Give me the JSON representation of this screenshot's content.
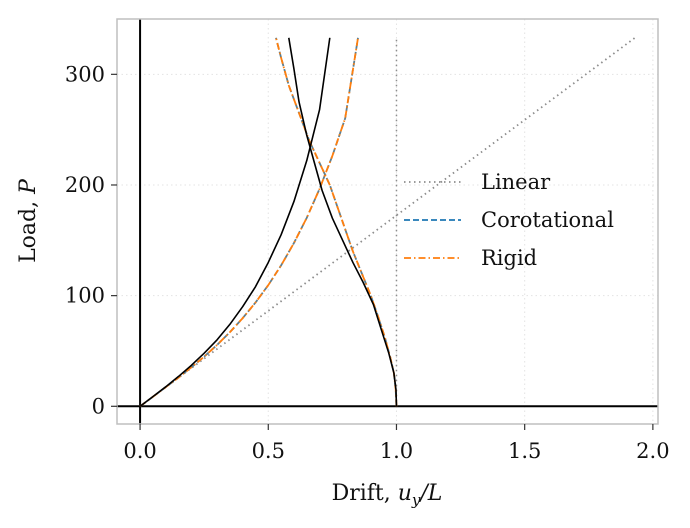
{
  "chart_data": {
    "type": "line",
    "xlabel": "Drift, ",
    "xlabel_math": "u",
    "xlabel_sub": "y",
    "xlabel_tail": "/L",
    "ylabel": "Load, ",
    "ylabel_math": "P",
    "xlim": [
      -0.09,
      2.02
    ],
    "ylim": [
      -16,
      350
    ],
    "xticks": [
      0.0,
      0.5,
      1.0,
      1.5,
      2.0
    ],
    "xtick_labels": [
      "0.0",
      "0.5",
      "1.0",
      "1.5",
      "2.0"
    ],
    "yticks": [
      0,
      100,
      200,
      300
    ],
    "ytick_labels": [
      "0",
      "100",
      "200",
      "300"
    ],
    "grid": true,
    "legend_position": "center-right",
    "colors": {
      "linear": "#8c8c8c",
      "corotational": "#1f77b4",
      "rigid": "#ff7f0e",
      "reference": "#000000",
      "frame": "#bfbfbf",
      "grid": "#e3e3e3"
    },
    "series": [
      {
        "name": "Linear",
        "style": "dotted",
        "x": [
          0,
          1.93
        ],
        "y": [
          0,
          333
        ]
      },
      {
        "name": "Corotational",
        "style": "dashed",
        "x": [
          0,
          0.05,
          0.1,
          0.15,
          0.2,
          0.25,
          0.3,
          0.35,
          0.4,
          0.45,
          0.5,
          0.55,
          0.6,
          0.65,
          0.7,
          0.75,
          0.8,
          0.85
        ],
        "y": [
          0,
          8.6,
          17.3,
          26.0,
          35.2,
          44.9,
          55.4,
          66.9,
          79.6,
          93.7,
          109.5,
          127.3,
          147.5,
          170.3,
          196.5,
          226.3,
          260.3,
          333.0
        ]
      },
      {
        "name": "Rigid",
        "style": "dashdot",
        "x": [
          0,
          0.05,
          0.1,
          0.15,
          0.2,
          0.25,
          0.3,
          0.35,
          0.4,
          0.45,
          0.5,
          0.55,
          0.6,
          0.65,
          0.7,
          0.75,
          0.8,
          0.85
        ],
        "y": [
          0,
          8.6,
          17.3,
          26.0,
          35.2,
          44.9,
          55.4,
          66.9,
          79.6,
          93.7,
          109.5,
          127.3,
          147.5,
          170.3,
          196.5,
          226.3,
          260.3,
          333.0
        ]
      },
      {
        "name": "Corotational",
        "style": "dashed",
        "x": [
          1.0,
          0.997,
          0.99,
          0.975,
          0.955,
          0.93,
          0.9,
          0.865,
          0.83,
          0.8,
          0.77,
          0.74,
          0.7,
          0.66,
          0.62,
          0.58,
          0.55,
          0.53
        ],
        "y": [
          0,
          15,
          30,
          45,
          62,
          80,
          100,
          120,
          140,
          160,
          180,
          200,
          220,
          240,
          265,
          290,
          315,
          333
        ]
      },
      {
        "name": "Rigid",
        "style": "dashdot",
        "x": [
          1.0,
          0.997,
          0.99,
          0.975,
          0.955,
          0.93,
          0.9,
          0.865,
          0.83,
          0.8,
          0.77,
          0.74,
          0.7,
          0.66,
          0.62,
          0.58,
          0.55,
          0.53
        ],
        "y": [
          0,
          15,
          30,
          45,
          62,
          80,
          100,
          120,
          140,
          160,
          180,
          200,
          220,
          240,
          265,
          290,
          315,
          333
        ]
      },
      {
        "style": "solid",
        "x": [
          0,
          0.05,
          0.1,
          0.15,
          0.2,
          0.25,
          0.3,
          0.35,
          0.4,
          0.45,
          0.5,
          0.55,
          0.6,
          0.65,
          0.7,
          0.74
        ],
        "y": [
          0,
          8.7,
          17.6,
          27.0,
          37.0,
          48.0,
          60.0,
          74.0,
          90.0,
          108.0,
          130.0,
          155.0,
          185.0,
          222.0,
          268.0,
          333.0
        ]
      },
      {
        "style": "solid",
        "x": [
          1.0,
          0.998,
          0.99,
          0.97,
          0.94,
          0.91,
          0.87,
          0.83,
          0.79,
          0.75,
          0.71,
          0.68,
          0.65,
          0.62,
          0.6,
          0.58
        ],
        "y": [
          0,
          15,
          30,
          48,
          70,
          92,
          112,
          130,
          150,
          170,
          195,
          220,
          245,
          275,
          305,
          333
        ]
      }
    ],
    "reference_lines": {
      "vertical_dotted_x": 1.0,
      "vertical_dotted_ytop": 333,
      "axis_x": 0,
      "axis_y": 0
    },
    "legend": [
      {
        "label": "Linear",
        "style": "dotted",
        "color": "#8c8c8c"
      },
      {
        "label": "Corotational",
        "style": "dashed",
        "color": "#1f77b4"
      },
      {
        "label": "Rigid",
        "style": "dashdot",
        "color": "#ff7f0e"
      }
    ]
  }
}
